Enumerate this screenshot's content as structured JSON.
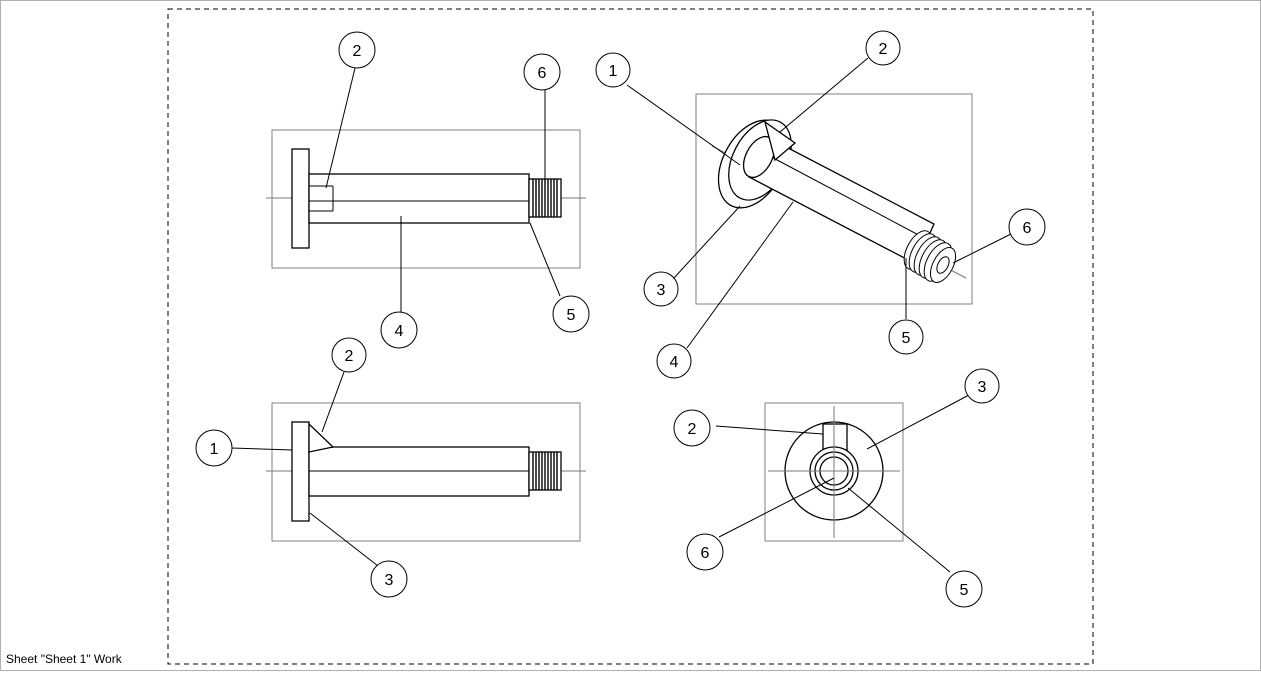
{
  "status_bar": {
    "text": "Sheet \"Sheet 1\" Work"
  },
  "balloons": {
    "front_view": [
      "2",
      "6",
      "4",
      "5"
    ],
    "bottom_view": [
      "2",
      "1",
      "3"
    ],
    "iso_view": [
      "1",
      "2",
      "3",
      "4",
      "5",
      "6"
    ],
    "end_view": [
      "2",
      "3",
      "6",
      "5"
    ]
  }
}
